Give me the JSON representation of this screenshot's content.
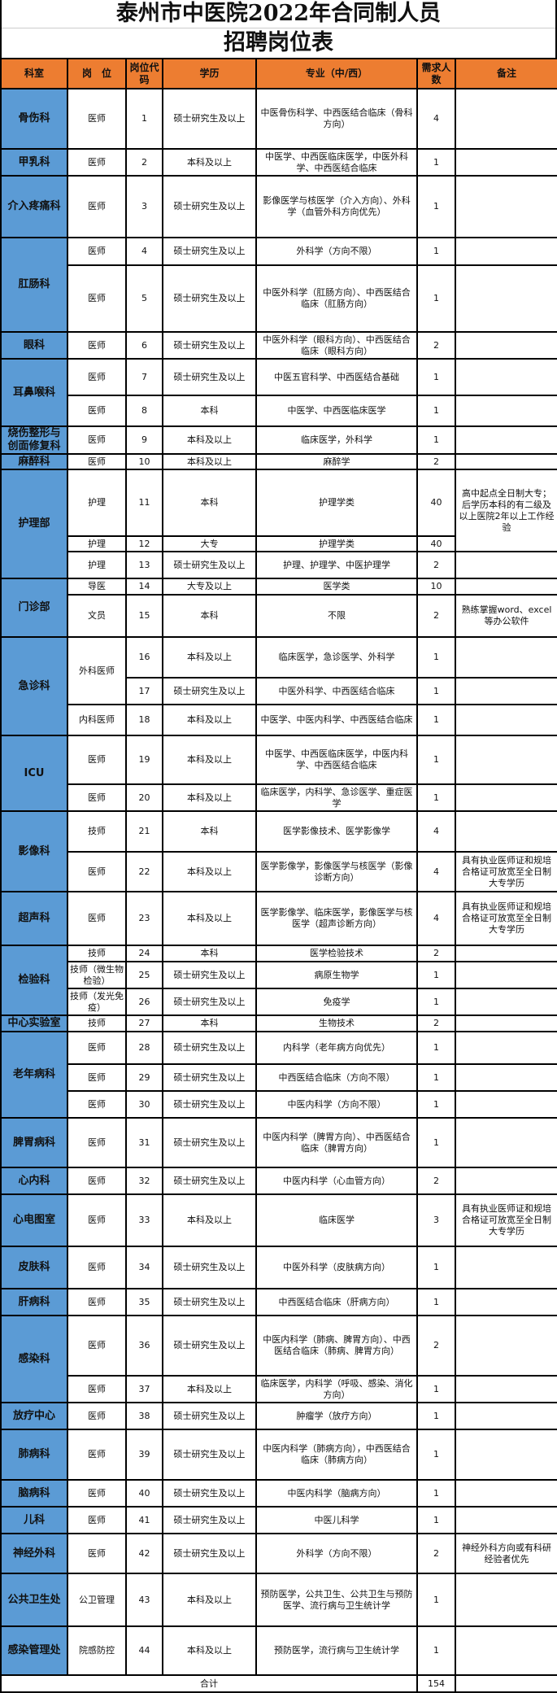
{
  "title_line1": "泰州市中医院2022年合同制人员",
  "title_line2": "招聘岗位表",
  "colors": {
    "header_bg": "#ED7D31",
    "dept_bg": "#5B9BD5"
  },
  "columns": [
    "科室",
    "岗　位",
    "岗位代码",
    "学历",
    "专业（中/西）",
    "需求人数",
    "备注"
  ],
  "departments": [
    {
      "name": "骨伤科",
      "rows": [
        {
          "position": "医师",
          "code": "1",
          "education": "硕士研究生及以上",
          "major": "中医骨伤科学、中西医结合临床（骨科方向）",
          "count": "4",
          "remark": ""
        }
      ]
    },
    {
      "name": "甲乳科",
      "rows": [
        {
          "position": "医师",
          "code": "2",
          "education": "本科及以上",
          "major": "中医学、中西医临床医学，中医外科学、中西医结合临床",
          "count": "1",
          "remark": ""
        }
      ]
    },
    {
      "name": "介入疼痛科",
      "rows": [
        {
          "position": "医师",
          "code": "3",
          "education": "硕士研究生及以上",
          "major": "影像医学与核医学（介入方向）、外科学（血管外科方向优先）",
          "count": "1",
          "remark": ""
        }
      ]
    },
    {
      "name": "肛肠科",
      "rows": [
        {
          "position": "医师",
          "code": "4",
          "education": "硕士研究生及以上",
          "major": "外科学（方向不限）",
          "count": "1",
          "remark": ""
        },
        {
          "position": "医师",
          "code": "5",
          "education": "硕士研究生及以上",
          "major": "中医外科学（肛肠方向）、中西医结合临床（肛肠方向）",
          "count": "1",
          "remark": ""
        }
      ]
    },
    {
      "name": "眼科",
      "rows": [
        {
          "position": "医师",
          "code": "6",
          "education": "硕士研究生及以上",
          "major": "中医外科学（眼科方向）、中西医结合临床（眼科方向）",
          "count": "2",
          "remark": ""
        }
      ]
    },
    {
      "name": "耳鼻喉科",
      "rows": [
        {
          "position": "医师",
          "code": "7",
          "education": "硕士研究生及以上",
          "major": "中医五官科学、中西医结合基础",
          "count": "1",
          "remark": ""
        },
        {
          "position": "医师",
          "code": "8",
          "education": "本科",
          "major": "中医学、中西医临床医学",
          "count": "1",
          "remark": ""
        }
      ]
    },
    {
      "name": "烧伤整形与创面修复科",
      "rows": [
        {
          "position": "医师",
          "code": "9",
          "education": "本科及以上",
          "major": "临床医学，外科学",
          "count": "1",
          "remark": ""
        }
      ]
    },
    {
      "name": "麻醉科",
      "rows": [
        {
          "position": "医师",
          "code": "10",
          "education": "本科及以上",
          "major": "麻醉学",
          "count": "2",
          "remark": ""
        }
      ]
    },
    {
      "name": "护理部",
      "rows": [
        {
          "position": "护理",
          "code": "11",
          "education": "本科",
          "major": "护理学类",
          "count": "40",
          "remark": "高中起点全日制大专；后学历本科的有二级及以上医院2年以上工作经验"
        },
        {
          "position": "护理",
          "code": "12",
          "education": "大专",
          "major": "护理学类",
          "count": "40",
          "remark": null
        },
        {
          "position": "护理",
          "code": "13",
          "education": "硕士研究生及以上",
          "major": "护理、护理学、中医护理学",
          "count": "2",
          "remark": ""
        }
      ]
    },
    {
      "name": "门诊部",
      "rows": [
        {
          "position": "导医",
          "code": "14",
          "education": "大专及以上",
          "major": "医学类",
          "count": "10",
          "remark": ""
        },
        {
          "position": "文员",
          "code": "15",
          "education": "本科",
          "major": "不限",
          "count": "2",
          "remark": "熟练掌握word、excel等办公软件"
        }
      ]
    },
    {
      "name": "急诊科",
      "rows": [
        {
          "position": "外科医师",
          "code": "16",
          "education": "本科及以上",
          "major": "临床医学，急诊医学、外科学",
          "count": "1",
          "remark": ""
        },
        {
          "position": null,
          "code": "17",
          "education": "硕士研究生及以上",
          "major": "中医外科学、中西医结合临床",
          "count": "1",
          "remark": ""
        },
        {
          "position": "内科医师",
          "code": "18",
          "education": "本科及以上",
          "major": "中医学、中医内科学、中西医结合临床",
          "count": "1",
          "remark": ""
        }
      ]
    },
    {
      "name": "ICU",
      "rows": [
        {
          "position": "医师",
          "code": "19",
          "education": "本科及以上",
          "major": "中医学、中西医临床医学，中医内科学、中西医结合临床",
          "count": "1",
          "remark": ""
        },
        {
          "position": "医师",
          "code": "20",
          "education": "本科及以上",
          "major": "临床医学，内科学、急诊医学、重症医学",
          "count": "1",
          "remark": ""
        }
      ]
    },
    {
      "name": "影像科",
      "rows": [
        {
          "position": "技师",
          "code": "21",
          "education": "本科",
          "major": "医学影像技术、医学影像学",
          "count": "4",
          "remark": ""
        },
        {
          "position": "医师",
          "code": "22",
          "education": "本科及以上",
          "major": "医学影像学，影像医学与核医学（影像诊断方向）",
          "count": "4",
          "remark": "具有执业医师证和规培合格证可放宽至全日制大专学历"
        }
      ]
    },
    {
      "name": "超声科",
      "rows": [
        {
          "position": "医师",
          "code": "23",
          "education": "本科及以上",
          "major": "医学影像学、临床医学，影像医学与核医学（超声诊断方向）",
          "count": "4",
          "remark": "具有执业医师证和规培合格证可放宽至全日制大专学历"
        }
      ]
    },
    {
      "name": "检验科",
      "rows": [
        {
          "position": "技师",
          "code": "24",
          "education": "本科",
          "major": "医学检验技术",
          "count": "2",
          "remark": ""
        },
        {
          "position": "技师（微生物检验）",
          "code": "25",
          "education": "硕士研究生及以上",
          "major": "病原生物学",
          "count": "1",
          "remark": ""
        },
        {
          "position": "技师（发光免疫）",
          "code": "26",
          "education": "硕士研究生及以上",
          "major": "免疫学",
          "count": "1",
          "remark": ""
        }
      ]
    },
    {
      "name": "中心实验室",
      "rows": [
        {
          "position": "技师",
          "code": "27",
          "education": "本科",
          "major": "生物技术",
          "count": "2",
          "remark": ""
        }
      ]
    },
    {
      "name": "老年病科",
      "rows": [
        {
          "position": "医师",
          "code": "28",
          "education": "硕士研究生及以上",
          "major": "内科学（老年病方向优先）",
          "count": "1",
          "remark": ""
        },
        {
          "position": "医师",
          "code": "29",
          "education": "硕士研究生及以上",
          "major": "中西医结合临床（方向不限）",
          "count": "1",
          "remark": ""
        },
        {
          "position": "医师",
          "code": "30",
          "education": "硕士研究生及以上",
          "major": "中医内科学（方向不限）",
          "count": "1",
          "remark": ""
        }
      ]
    },
    {
      "name": "脾胃病科",
      "rows": [
        {
          "position": "医师",
          "code": "31",
          "education": "硕士研究生及以上",
          "major": "中医内科学（脾胃方向）、中西医结合临床（脾胃方向）",
          "count": "1",
          "remark": ""
        }
      ]
    },
    {
      "name": "心内科",
      "rows": [
        {
          "position": "医师",
          "code": "32",
          "education": "硕士研究生及以上",
          "major": "中医内科学（心血管方向）",
          "count": "2",
          "remark": ""
        }
      ]
    },
    {
      "name": "心电图室",
      "rows": [
        {
          "position": "医师",
          "code": "33",
          "education": "本科及以上",
          "major": "临床医学",
          "count": "3",
          "remark": "具有执业医师证和规培合格证可放宽至全日制大专学历"
        }
      ]
    },
    {
      "name": "皮肤科",
      "rows": [
        {
          "position": "医师",
          "code": "34",
          "education": "硕士研究生及以上",
          "major": "中医外科学（皮肤病方向）",
          "count": "1",
          "remark": ""
        }
      ]
    },
    {
      "name": "肝病科",
      "rows": [
        {
          "position": "医师",
          "code": "35",
          "education": "硕士研究生及以上",
          "major": "中西医结合临床（肝病方向）",
          "count": "1",
          "remark": ""
        }
      ]
    },
    {
      "name": "感染科",
      "rows": [
        {
          "position": "医师",
          "code": "36",
          "education": "硕士研究生及以上",
          "major": "中医内科学（肺病、脾胃方向）、中西医结合临床（肺病、脾胃方向）",
          "count": "2",
          "remark": ""
        },
        {
          "position": "医师",
          "code": "37",
          "education": "本科及以上",
          "major": "临床医学，内科学（呼吸、感染、消化方向）",
          "count": "1",
          "remark": ""
        }
      ]
    },
    {
      "name": "放疗中心",
      "rows": [
        {
          "position": "医师",
          "code": "38",
          "education": "硕士研究生及以上",
          "major": "肿瘤学（放疗方向）",
          "count": "1",
          "remark": ""
        }
      ]
    },
    {
      "name": "肺病科",
      "rows": [
        {
          "position": "医师",
          "code": "39",
          "education": "硕士研究生及以上",
          "major": "中医内科学（肺病方向），中西医结合临床（肺病方向）",
          "count": "1",
          "remark": ""
        }
      ]
    },
    {
      "name": "脑病科",
      "rows": [
        {
          "position": "医师",
          "code": "40",
          "education": "硕士研究生及以上",
          "major": "中医内科学（脑病方向）",
          "count": "1",
          "remark": ""
        }
      ]
    },
    {
      "name": "儿科",
      "rows": [
        {
          "position": "医师",
          "code": "41",
          "education": "硕士研究生及以上",
          "major": "中医儿科学",
          "count": "1",
          "remark": ""
        }
      ]
    },
    {
      "name": "神经外科",
      "rows": [
        {
          "position": "医师",
          "code": "42",
          "education": "硕士研究生及以上",
          "major": "外科学（方向不限）",
          "count": "2",
          "remark": "神经外科方向或有科研经验者优先"
        }
      ]
    },
    {
      "name": "公共卫生处",
      "rows": [
        {
          "position": "公卫管理",
          "code": "43",
          "education": "本科及以上",
          "major": "预防医学，公共卫生、公共卫生与预防医学、流行病与卫生统计学",
          "count": "1",
          "remark": ""
        }
      ]
    },
    {
      "name": "感染管理处",
      "rows": [
        {
          "position": "院感防控",
          "code": "44",
          "education": "本科及以上",
          "major": "预防医学，流行病与卫生统计学",
          "count": "1",
          "remark": ""
        }
      ]
    }
  ],
  "total": {
    "label": "合计",
    "count": "154"
  }
}
